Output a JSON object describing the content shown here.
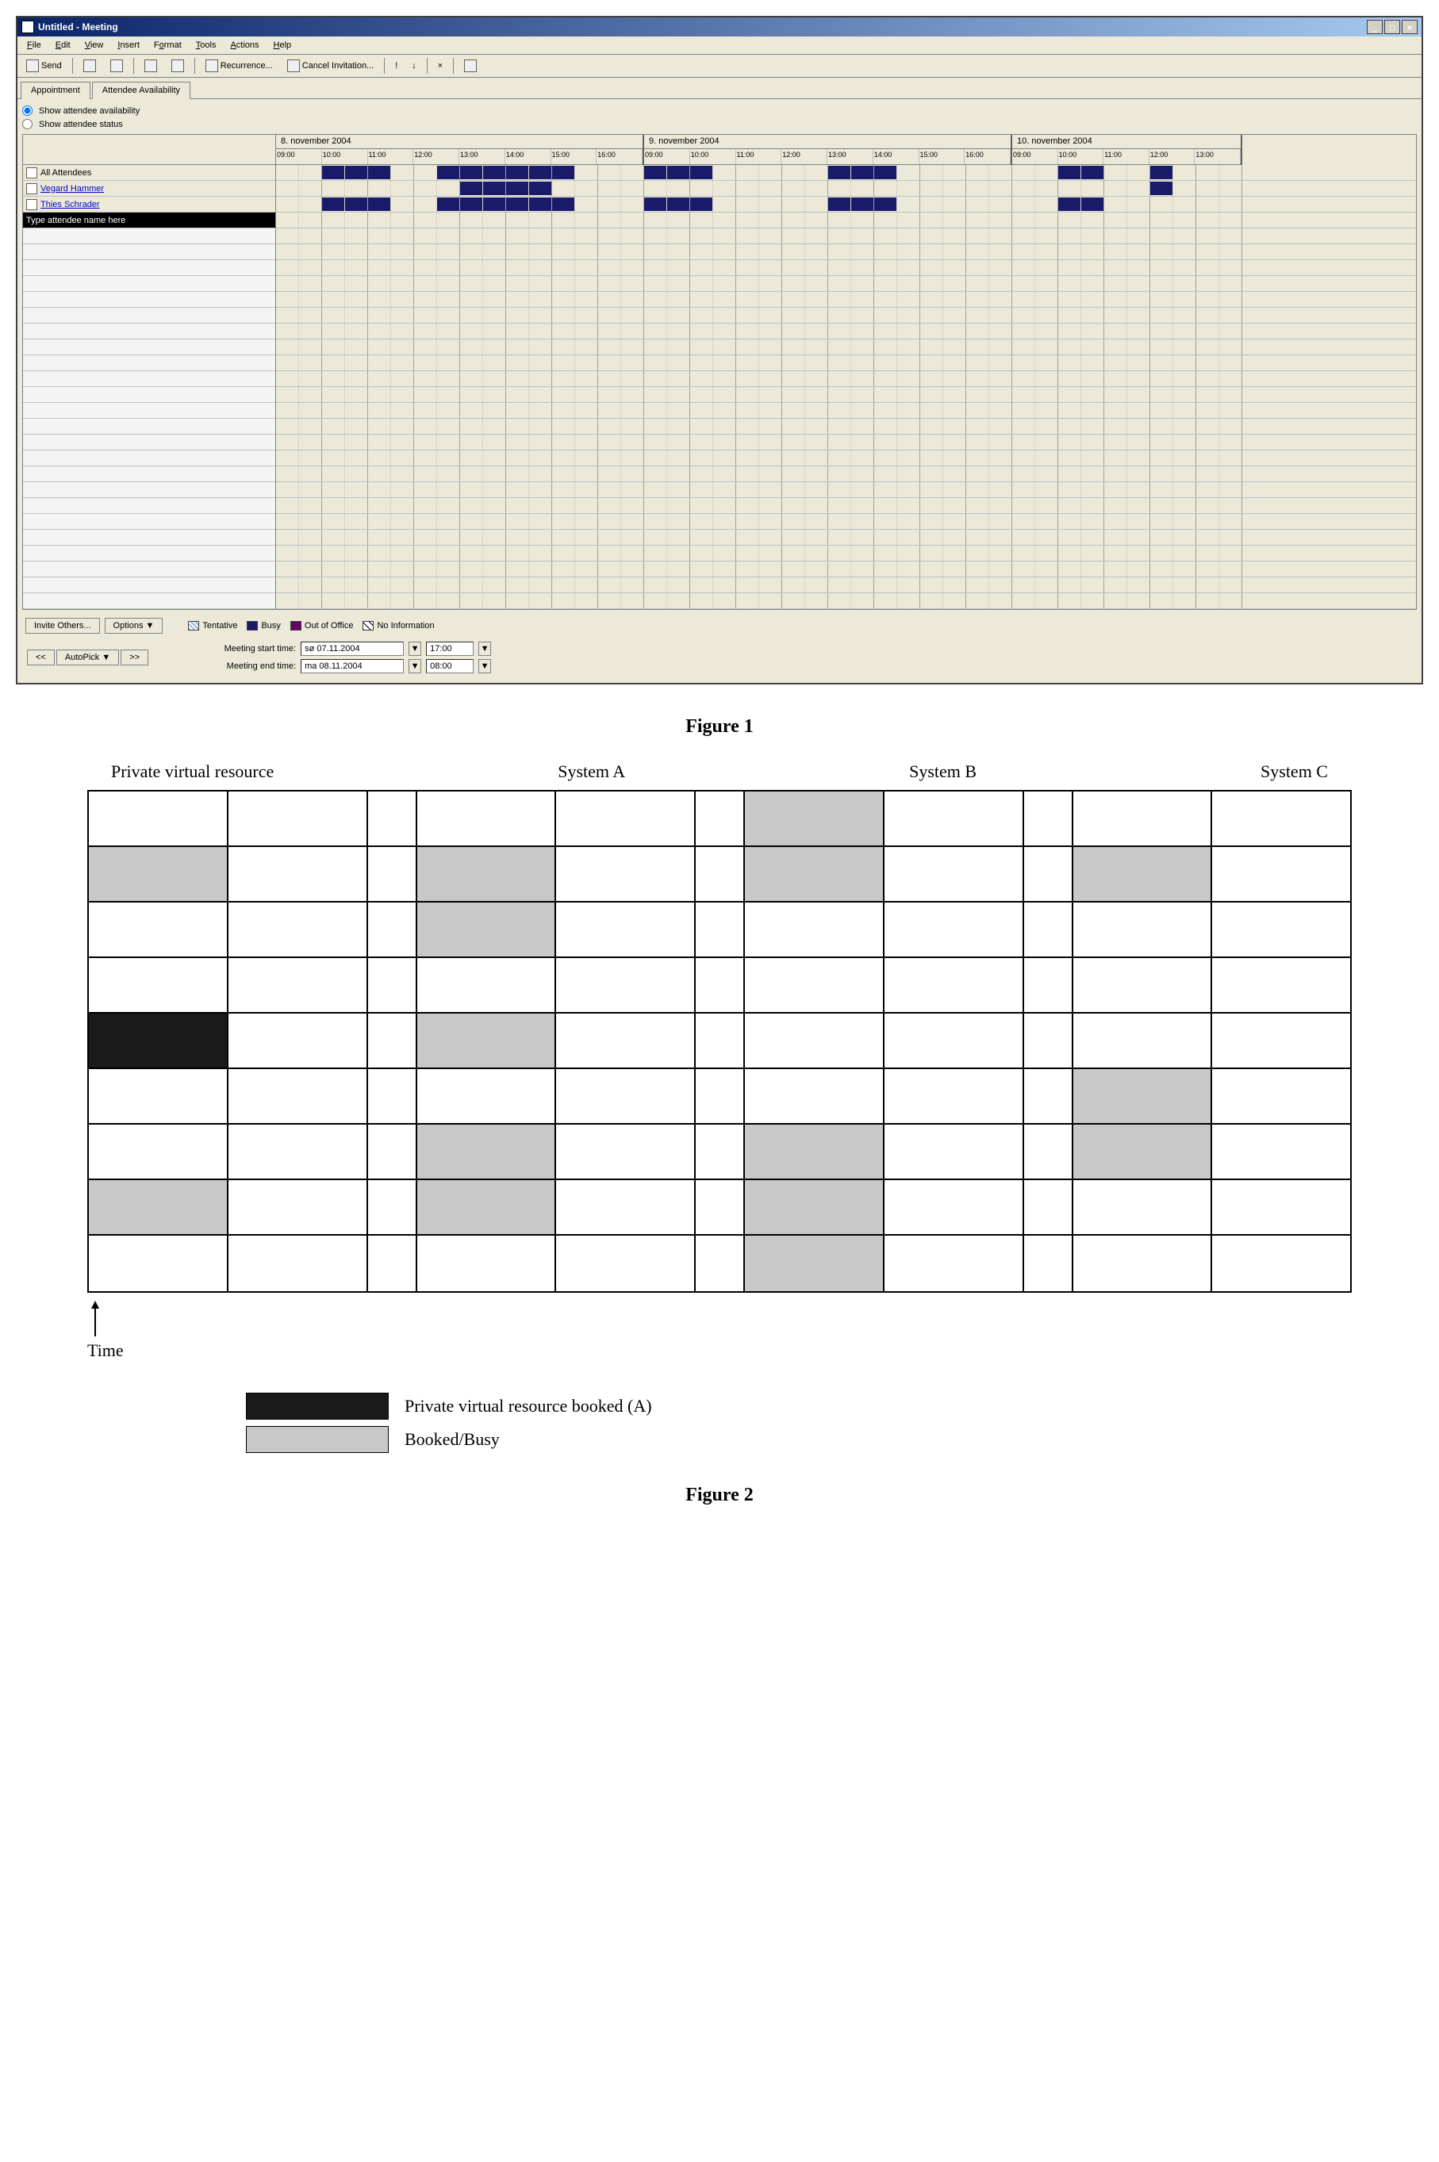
{
  "window": {
    "title": "Untitled - Meeting"
  },
  "menus": [
    "File",
    "Edit",
    "View",
    "Insert",
    "Format",
    "Tools",
    "Actions",
    "Help"
  ],
  "toolbar": {
    "send": "Send",
    "recurrence": "Recurrence...",
    "cancel": "Cancel Invitation..."
  },
  "tabs": {
    "appointment": "Appointment",
    "availability": "Attendee Availability"
  },
  "radios": {
    "show_avail": "Show attendee availability",
    "show_status": "Show attendee status"
  },
  "attendees": {
    "header": "All Attendees",
    "list": [
      "Vegard Hammer",
      "Thies Schrader"
    ],
    "placeholder": "Type attendee name here"
  },
  "calendar": {
    "days": [
      {
        "label": "8. november 2004",
        "hours": [
          "09:00",
          "10:00",
          "11:00",
          "12:00",
          "13:00",
          "14:00",
          "15:00",
          "16:00"
        ]
      },
      {
        "label": "9. november 2004",
        "hours": [
          "09:00",
          "10:00",
          "11:00",
          "12:00",
          "13:00",
          "14:00",
          "15:00",
          "16:00"
        ]
      },
      {
        "label": "10. november 2004",
        "hours": [
          "09:00",
          "10:00",
          "11:00",
          "12:00",
          "13:00"
        ]
      }
    ],
    "busy": {
      "row0": [
        [
          0,
          2,
          5
        ],
        [
          0,
          7,
          13
        ],
        [
          1,
          0,
          3
        ],
        [
          1,
          8,
          11
        ],
        [
          2,
          2,
          4
        ],
        [
          2,
          6,
          7
        ]
      ],
      "row1": [
        [
          0,
          8,
          12
        ],
        [
          2,
          6,
          7
        ]
      ],
      "row2": [
        [
          0,
          2,
          5
        ],
        [
          0,
          7,
          13
        ],
        [
          1,
          0,
          3
        ],
        [
          1,
          8,
          11
        ],
        [
          2,
          2,
          4
        ]
      ]
    }
  },
  "buttons": {
    "invite": "Invite Others...",
    "options": "Options",
    "autopick": "AutoPick",
    "prev": "<<",
    "next": ">>"
  },
  "legend": {
    "tentative": "Tentative",
    "busy": "Busy",
    "oof": "Out of Office",
    "noinfo": "No Information"
  },
  "times": {
    "start_label": "Meeting start time:",
    "end_label": "Meeting end time:",
    "start_date": "sø 07.11.2004",
    "start_time": "17:00",
    "end_date": "ma 08.11.2004",
    "end_time": "08:00"
  },
  "figure1_label": "Figure 1",
  "figure2": {
    "label": "Figure 2",
    "columns": [
      "Private virtual resource",
      "System A",
      "System B",
      "System C"
    ],
    "time_label": "Time",
    "legend_booked": "Private virtual resource booked (A)",
    "legend_busy": "Booked/Busy",
    "rows": 9,
    "cells": {
      "col0_sub0": [
        "",
        "busy",
        "",
        "",
        "booked",
        "",
        "",
        "busy",
        ""
      ],
      "col0_sub1": [
        "",
        "",
        "",
        "",
        "",
        "",
        "",
        "",
        ""
      ],
      "col1_sub0": [
        "",
        "busy",
        "busy",
        "",
        "busy",
        "",
        "busy",
        "busy",
        ""
      ],
      "col1_sub1": [
        "",
        "",
        "",
        "",
        "",
        "",
        "",
        "",
        ""
      ],
      "col2_sub0": [
        "busy",
        "busy",
        "",
        "",
        "",
        "",
        "busy",
        "busy",
        "busy"
      ],
      "col2_sub1": [
        "",
        "",
        "",
        "",
        "",
        "",
        "",
        "",
        ""
      ],
      "col3_sub0": [
        "",
        "busy",
        "",
        "",
        "",
        "busy",
        "busy",
        "",
        ""
      ],
      "col3_sub1": [
        "",
        "",
        "",
        "",
        "",
        "",
        "",
        "",
        ""
      ]
    }
  }
}
